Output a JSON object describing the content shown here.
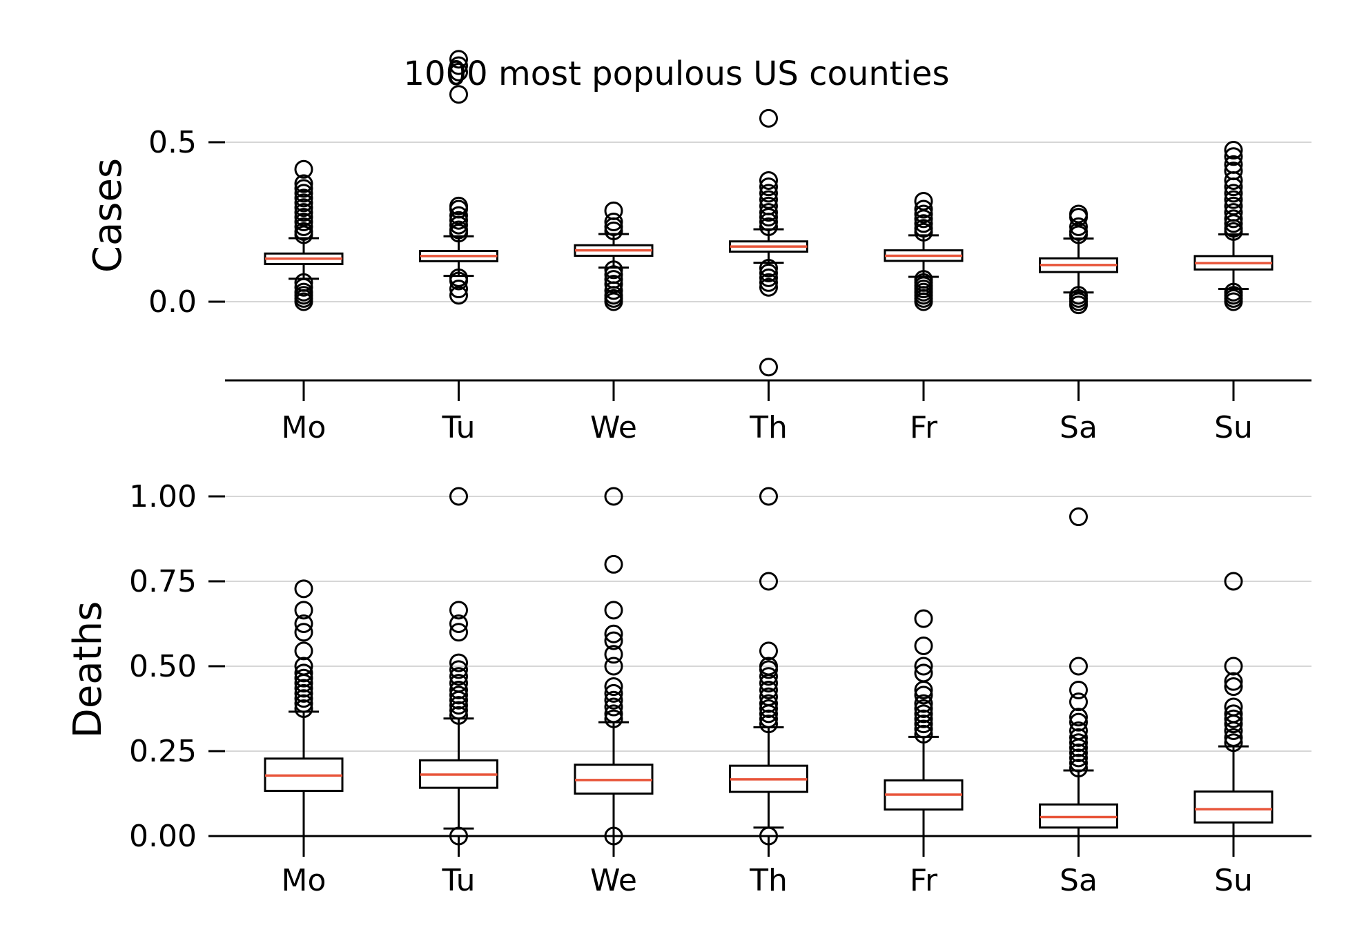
{
  "chart_data": {
    "type": "boxplot",
    "title": "1000 most populous US counties",
    "median_color": "#e8553a",
    "categories": [
      "Mo",
      "Tu",
      "We",
      "Th",
      "Fr",
      "Sa",
      "Su"
    ],
    "panels": [
      {
        "name": "cases",
        "ylabel": "Cases",
        "ylim": [
          -0.25,
          0.73
        ],
        "yticks": [
          0.0,
          0.5
        ],
        "ytick_labels": [
          "0.0",
          "0.5"
        ],
        "grid": true,
        "boxes": [
          {
            "q1": 0.118,
            "median": 0.135,
            "q3": 0.151,
            "whisker_low": 0.072,
            "whisker_high": 0.199,
            "fliers": [
              0.0,
              0.01,
              0.02,
              0.03,
              0.045,
              0.06,
              0.21,
              0.22,
              0.235,
              0.25,
              0.265,
              0.28,
              0.295,
              0.31,
              0.325,
              0.34,
              0.355,
              0.37,
              0.415
            ]
          },
          {
            "q1": 0.127,
            "median": 0.143,
            "q3": 0.159,
            "whisker_low": 0.081,
            "whisker_high": 0.205,
            "fliers": [
              0.02,
              0.04,
              0.065,
              0.075,
              0.215,
              0.225,
              0.24,
              0.255,
              0.27,
              0.29,
              0.3,
              0.65,
              0.72,
              0.74,
              0.76
            ]
          },
          {
            "q1": 0.144,
            "median": 0.161,
            "q3": 0.177,
            "whisker_low": 0.107,
            "whisker_high": 0.212,
            "fliers": [
              0.0,
              0.01,
              0.02,
              0.035,
              0.055,
              0.07,
              0.085,
              0.1,
              0.222,
              0.235,
              0.25,
              0.285
            ]
          },
          {
            "q1": 0.157,
            "median": 0.173,
            "q3": 0.189,
            "whisker_low": 0.122,
            "whisker_high": 0.227,
            "fliers": [
              -0.205,
              0.045,
              0.06,
              0.075,
              0.09,
              0.105,
              0.235,
              0.25,
              0.265,
              0.28,
              0.3,
              0.32,
              0.34,
              0.36,
              0.38,
              0.575
            ]
          },
          {
            "q1": 0.128,
            "median": 0.144,
            "q3": 0.161,
            "whisker_low": 0.078,
            "whisker_high": 0.208,
            "fliers": [
              0.0,
              0.01,
              0.02,
              0.03,
              0.04,
              0.05,
              0.06,
              0.07,
              0.218,
              0.23,
              0.245,
              0.26,
              0.275,
              0.29,
              0.315
            ]
          },
          {
            "q1": 0.093,
            "median": 0.115,
            "q3": 0.136,
            "whisker_low": 0.029,
            "whisker_high": 0.198,
            "fliers": [
              -0.01,
              0.0,
              0.01,
              0.02,
              0.21,
              0.22,
              0.235,
              0.265,
              0.275
            ]
          },
          {
            "q1": 0.101,
            "median": 0.121,
            "q3": 0.143,
            "whisker_low": 0.04,
            "whisker_high": 0.211,
            "fliers": [
              0.0,
              0.01,
              0.02,
              0.03,
              0.22,
              0.23,
              0.245,
              0.26,
              0.28,
              0.3,
              0.32,
              0.34,
              0.36,
              0.38,
              0.41,
              0.43,
              0.455,
              0.475
            ]
          }
        ]
      },
      {
        "name": "deaths",
        "ylabel": "Deaths",
        "ylim": [
          0.0,
          1.0
        ],
        "yticks": [
          0.0,
          0.25,
          0.5,
          0.75,
          1.0
        ],
        "ytick_labels": [
          "0.00",
          "0.25",
          "0.50",
          "0.75",
          "1.00"
        ],
        "grid": true,
        "boxes": [
          {
            "q1": 0.133,
            "median": 0.178,
            "q3": 0.228,
            "whisker_low": 0.0,
            "whisker_high": 0.366,
            "fliers": [
              0.375,
              0.39,
              0.405,
              0.42,
              0.435,
              0.45,
              0.465,
              0.48,
              0.5,
              0.545,
              0.6,
              0.625,
              0.665,
              0.728
            ]
          },
          {
            "q1": 0.142,
            "median": 0.181,
            "q3": 0.223,
            "whisker_low": 0.022,
            "whisker_high": 0.346,
            "fliers": [
              0.0,
              0.355,
              0.37,
              0.385,
              0.4,
              0.415,
              0.43,
              0.45,
              0.47,
              0.49,
              0.51,
              0.6,
              0.625,
              0.665,
              1.0
            ]
          },
          {
            "q1": 0.125,
            "median": 0.165,
            "q3": 0.21,
            "whisker_low": 0.0,
            "whisker_high": 0.335,
            "fliers": [
              0.0,
              0.345,
              0.36,
              0.38,
              0.4,
              0.42,
              0.44,
              0.5,
              0.535,
              0.575,
              0.595,
              0.665,
              0.8,
              1.0
            ]
          },
          {
            "q1": 0.13,
            "median": 0.167,
            "q3": 0.207,
            "whisker_low": 0.025,
            "whisker_high": 0.32,
            "fliers": [
              0.0,
              0.33,
              0.345,
              0.36,
              0.375,
              0.39,
              0.41,
              0.43,
              0.45,
              0.47,
              0.49,
              0.5,
              0.545,
              0.75,
              1.0
            ]
          },
          {
            "q1": 0.078,
            "median": 0.122,
            "q3": 0.164,
            "whisker_low": 0.0,
            "whisker_high": 0.292,
            "fliers": [
              0.3,
              0.315,
              0.33,
              0.345,
              0.36,
              0.375,
              0.39,
              0.415,
              0.43,
              0.48,
              0.5,
              0.56,
              0.64
            ]
          },
          {
            "q1": 0.025,
            "median": 0.056,
            "q3": 0.093,
            "whisker_low": 0.0,
            "whisker_high": 0.193,
            "fliers": [
              0.2,
              0.215,
              0.23,
              0.245,
              0.26,
              0.275,
              0.29,
              0.31,
              0.335,
              0.35,
              0.395,
              0.43,
              0.5,
              0.94
            ]
          },
          {
            "q1": 0.04,
            "median": 0.079,
            "q3": 0.131,
            "whisker_low": 0.0,
            "whisker_high": 0.264,
            "fliers": [
              0.275,
              0.29,
              0.31,
              0.33,
              0.345,
              0.36,
              0.38,
              0.44,
              0.455,
              0.5,
              0.75
            ]
          }
        ]
      }
    ]
  }
}
